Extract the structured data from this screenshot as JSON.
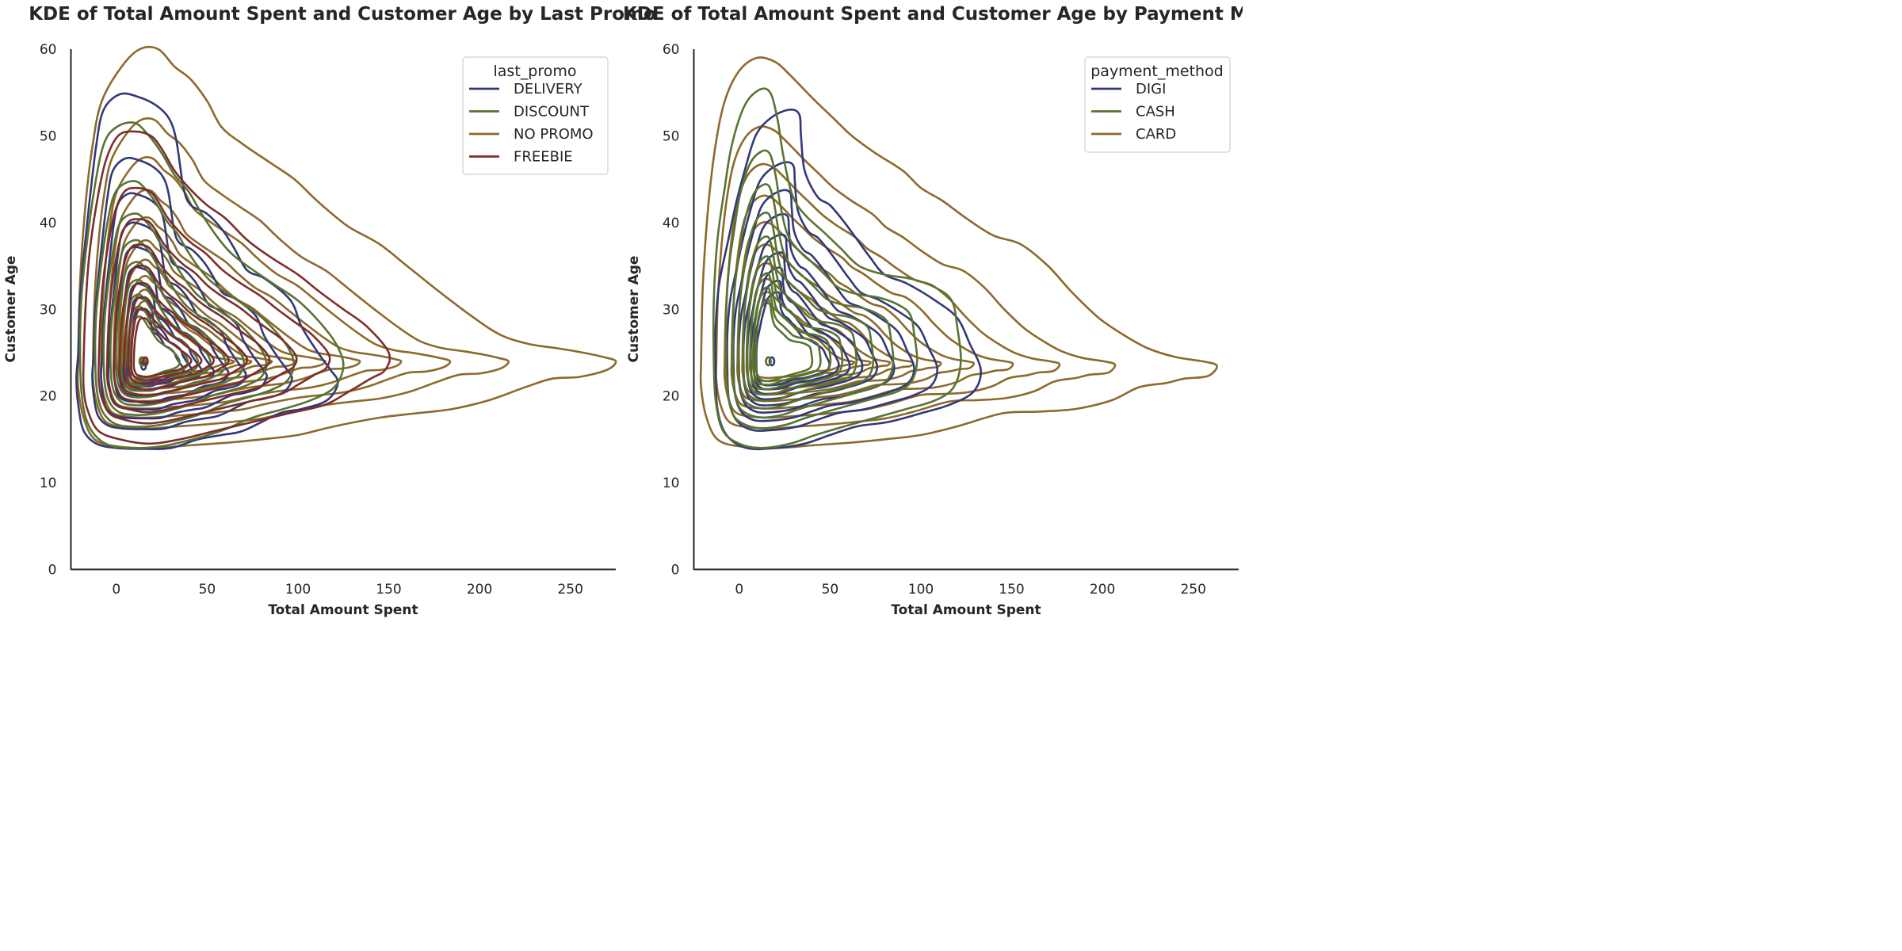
{
  "chart_data": [
    {
      "type": "kde-contour",
      "title": "KDE of Total Amount Spent and Customer Age by Last Promo",
      "xlabel": "Total Amount Spent",
      "ylabel": "Customer Age",
      "xlim": [
        -25,
        275
      ],
      "ylim": [
        0,
        60
      ],
      "xticks": [
        0,
        50,
        100,
        150,
        200,
        250
      ],
      "yticks": [
        0,
        10,
        20,
        30,
        40,
        50,
        60
      ],
      "grid": false,
      "legend": {
        "title": "last_promo",
        "placement": "top-right"
      },
      "series": [
        {
          "name": "DELIVERY",
          "color": "#33387a",
          "center": [
            15,
            23.5
          ],
          "outer": [
            [
              -21,
              25
            ],
            [
              -20,
              31
            ],
            [
              -18,
              36
            ],
            [
              -15,
              42
            ],
            [
              -11,
              49
            ],
            [
              -7,
              53
            ],
            [
              2,
              54.8
            ],
            [
              12,
              54.5
            ],
            [
              22,
              53.5
            ],
            [
              29,
              52
            ],
            [
              33,
              49.5
            ],
            [
              37,
              44
            ],
            [
              41,
              42
            ],
            [
              50,
              41
            ],
            [
              59,
              39
            ],
            [
              65,
              37
            ],
            [
              72,
              34.5
            ],
            [
              82,
              33.5
            ],
            [
              96,
              31
            ],
            [
              102,
              28
            ],
            [
              111,
              25
            ],
            [
              118,
              23
            ],
            [
              122,
              21.5
            ],
            [
              116,
              19.5
            ],
            [
              102,
              18.5
            ],
            [
              90,
              18
            ],
            [
              70,
              16
            ],
            [
              58,
              15.5
            ],
            [
              45,
              15
            ],
            [
              30,
              14
            ],
            [
              15,
              13.9
            ],
            [
              0,
              14
            ],
            [
              -11,
              14.5
            ],
            [
              -18,
              16
            ],
            [
              -21,
              19
            ],
            [
              -22,
              22
            ]
          ],
          "levels": 9,
          "shrink": 0.83
        }
      ]
    },
    {
      "type": "kde-contour",
      "title": "KDE of Total Amount Spent and Customer Age by Payment Method",
      "xlabel": "Total Amount Spent",
      "ylabel": "Customer Age",
      "xlim": [
        -25,
        275
      ],
      "ylim": [
        0,
        60
      ],
      "xticks": [
        0,
        50,
        100,
        150,
        200,
        250
      ],
      "yticks": [
        0,
        10,
        20,
        30,
        40,
        50,
        60
      ],
      "grid": false,
      "legend": {
        "title": "payment_method",
        "placement": "top-right"
      },
      "series": [
        {
          "name": "DIGI",
          "color": "#33387a",
          "center": [
            18,
            24
          ],
          "outer": [
            [
              -13,
              23
            ],
            [
              -13,
              28
            ],
            [
              -11,
              33
            ],
            [
              -6,
              38
            ],
            [
              -2,
              42
            ],
            [
              3,
              46
            ],
            [
              9,
              50
            ],
            [
              17,
              52
            ],
            [
              27,
              53
            ],
            [
              33,
              52.5
            ],
            [
              34,
              50
            ],
            [
              36,
              46
            ],
            [
              43,
              43
            ],
            [
              50,
              42
            ],
            [
              58,
              40
            ],
            [
              65,
              38
            ],
            [
              72,
              36
            ],
            [
              80,
              34
            ],
            [
              92,
              33
            ],
            [
              108,
              31
            ],
            [
              120,
              29
            ],
            [
              127,
              26
            ],
            [
              133,
              23
            ],
            [
              129,
              20.5
            ],
            [
              116,
              19
            ],
            [
              100,
              18
            ],
            [
              82,
              17
            ],
            [
              65,
              16.5
            ],
            [
              50,
              15.5
            ],
            [
              36,
              14.5
            ],
            [
              20,
              14
            ],
            [
              4,
              14
            ],
            [
              -7,
              15.5
            ],
            [
              -12,
              18.5
            ]
          ],
          "levels": 9,
          "shrink": 0.86
        }
      ]
    }
  ],
  "series_extra": {
    "left": [
      {
        "name": "DISCOUNT",
        "color": "#587431",
        "center": [
          14,
          24
        ],
        "outer": [
          [
            -20,
            26
          ],
          [
            -19,
            32
          ],
          [
            -16,
            38
          ],
          [
            -12,
            44
          ],
          [
            -7,
            49
          ],
          [
            0,
            51
          ],
          [
            10,
            51.5
          ],
          [
            18,
            50
          ],
          [
            25,
            48
          ],
          [
            32,
            45.5
          ],
          [
            40,
            43.5
          ],
          [
            47,
            41
          ],
          [
            55,
            38.5
          ],
          [
            63,
            36.5
          ],
          [
            72,
            35
          ],
          [
            86,
            33
          ],
          [
            100,
            31
          ],
          [
            112,
            28.5
          ],
          [
            121,
            26
          ],
          [
            125,
            23.5
          ],
          [
            120,
            21
          ],
          [
            107,
            19.5
          ],
          [
            92,
            18.5
          ],
          [
            75,
            17.5
          ],
          [
            58,
            16
          ],
          [
            42,
            15
          ],
          [
            25,
            14.2
          ],
          [
            8,
            14
          ],
          [
            -6,
            14.5
          ],
          [
            -15,
            16.5
          ],
          [
            -19,
            20
          ]
        ],
        "levels": 9,
        "shrink": 0.82
      },
      {
        "name": "NO PROMO",
        "color": "#8c6a2a",
        "center": [
          15,
          24
        ],
        "outer": [
          [
            -21,
            24
          ],
          [
            -20,
            33
          ],
          [
            -17,
            42
          ],
          [
            -13,
            49
          ],
          [
            -8,
            54
          ],
          [
            3,
            58
          ],
          [
            13,
            60
          ],
          [
            23,
            60
          ],
          [
            32,
            58
          ],
          [
            41,
            56.5
          ],
          [
            50,
            54
          ],
          [
            58,
            51
          ],
          [
            70,
            49
          ],
          [
            84,
            47
          ],
          [
            98,
            45
          ],
          [
            108,
            43
          ],
          [
            116,
            41.5
          ],
          [
            128,
            39.5
          ],
          [
            145,
            37.5
          ],
          [
            160,
            35
          ],
          [
            178,
            32
          ],
          [
            197,
            29
          ],
          [
            212,
            27
          ],
          [
            227,
            26
          ],
          [
            243,
            25.5
          ],
          [
            257,
            25
          ],
          [
            268,
            24.5
          ],
          [
            275,
            24
          ],
          [
            270,
            23
          ],
          [
            255,
            22.2
          ],
          [
            240,
            22
          ],
          [
            225,
            21
          ],
          [
            205,
            19.5
          ],
          [
            185,
            18.5
          ],
          [
            165,
            18
          ],
          [
            145,
            17.5
          ],
          [
            120,
            16.5
          ],
          [
            100,
            15.5
          ],
          [
            80,
            15
          ],
          [
            60,
            14.6
          ],
          [
            40,
            14.3
          ],
          [
            20,
            14
          ],
          [
            0,
            14.2
          ],
          [
            -12,
            15
          ],
          [
            -18,
            17.5
          ],
          [
            -21,
            21
          ]
        ],
        "levels": 10,
        "shrink": 0.84
      },
      {
        "name": "FREEBIE",
        "color": "#7e2d2b",
        "center": [
          16,
          24
        ],
        "outer": [
          [
            -18,
            24
          ],
          [
            -17,
            30
          ],
          [
            -15,
            36
          ],
          [
            -11,
            42
          ],
          [
            -6,
            47
          ],
          [
            1,
            50
          ],
          [
            10,
            50.5
          ],
          [
            19,
            50
          ],
          [
            25,
            48.5
          ],
          [
            32,
            46
          ],
          [
            40,
            44
          ],
          [
            50,
            42
          ],
          [
            60,
            40.5
          ],
          [
            72,
            38
          ],
          [
            85,
            36
          ],
          [
            100,
            34
          ],
          [
            112,
            32
          ],
          [
            125,
            30
          ],
          [
            138,
            28
          ],
          [
            150,
            25
          ],
          [
            148,
            23
          ],
          [
            140,
            22
          ],
          [
            128,
            20.5
          ],
          [
            115,
            19
          ],
          [
            95,
            18
          ],
          [
            75,
            17
          ],
          [
            55,
            16
          ],
          [
            35,
            15
          ],
          [
            18,
            14.5
          ],
          [
            2,
            15
          ],
          [
            -10,
            16
          ],
          [
            -16,
            18.5
          ],
          [
            -18,
            21
          ]
        ],
        "levels": 9,
        "shrink": 0.82
      }
    ],
    "right": [
      {
        "name": "CASH",
        "color": "#587431",
        "center": [
          16,
          24
        ],
        "outer": [
          [
            -14,
            24
          ],
          [
            -14,
            31
          ],
          [
            -12,
            38
          ],
          [
            -8,
            44
          ],
          [
            -4,
            49
          ],
          [
            3,
            53.5
          ],
          [
            11,
            55.3
          ],
          [
            17,
            55
          ],
          [
            21,
            52
          ],
          [
            24,
            48
          ],
          [
            28,
            44
          ],
          [
            32,
            42
          ],
          [
            38,
            40.5
          ],
          [
            46,
            39
          ],
          [
            56,
            37
          ],
          [
            66,
            35
          ],
          [
            80,
            34
          ],
          [
            95,
            33.5
          ],
          [
            108,
            32.5
          ],
          [
            117,
            31
          ],
          [
            120,
            28
          ],
          [
            122,
            24
          ],
          [
            118,
            21
          ],
          [
            108,
            19.5
          ],
          [
            92,
            18.5
          ],
          [
            75,
            17.5
          ],
          [
            58,
            16.5
          ],
          [
            42,
            15.5
          ],
          [
            28,
            14.5
          ],
          [
            12,
            14
          ],
          [
            0,
            14.5
          ],
          [
            -9,
            16
          ],
          [
            -13,
            19.5
          ]
        ],
        "levels": 9,
        "shrink": 0.84
      },
      {
        "name": "CARD",
        "color": "#8c6a2a",
        "center": [
          16,
          24
        ],
        "outer": [
          [
            -21,
            24
          ],
          [
            -20,
            33
          ],
          [
            -17,
            42
          ],
          [
            -13,
            49
          ],
          [
            -8,
            54
          ],
          [
            0,
            57.5
          ],
          [
            10,
            59
          ],
          [
            20,
            58.5
          ],
          [
            28,
            57
          ],
          [
            35,
            55.5
          ],
          [
            42,
            54
          ],
          [
            52,
            52
          ],
          [
            62,
            50
          ],
          [
            75,
            48
          ],
          [
            90,
            46
          ],
          [
            100,
            44
          ],
          [
            112,
            42.5
          ],
          [
            125,
            40.5
          ],
          [
            140,
            38.5
          ],
          [
            155,
            37.5
          ],
          [
            170,
            35
          ],
          [
            183,
            32
          ],
          [
            198,
            29
          ],
          [
            212,
            27
          ],
          [
            225,
            25.5
          ],
          [
            240,
            24.5
          ],
          [
            255,
            24
          ],
          [
            263,
            23.5
          ],
          [
            258,
            22.3
          ],
          [
            245,
            22
          ],
          [
            235,
            21.5
          ],
          [
            220,
            21
          ],
          [
            205,
            19.5
          ],
          [
            185,
            18.5
          ],
          [
            165,
            18.2
          ],
          [
            145,
            18
          ],
          [
            120,
            16.5
          ],
          [
            100,
            15.5
          ],
          [
            80,
            15
          ],
          [
            60,
            14.6
          ],
          [
            40,
            14.3
          ],
          [
            20,
            14
          ],
          [
            0,
            14.2
          ],
          [
            -12,
            15
          ],
          [
            -18,
            17.5
          ],
          [
            -21,
            21
          ]
        ],
        "levels": 10,
        "shrink": 0.84
      }
    ]
  }
}
